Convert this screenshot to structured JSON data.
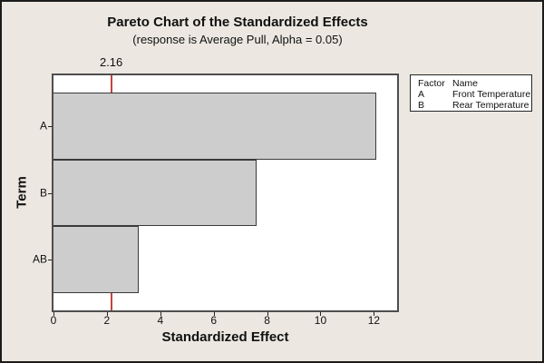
{
  "chart_data": {
    "type": "bar",
    "orientation": "horizontal",
    "title": "Pareto Chart of the Standardized Effects",
    "subtitle": "(response is Average Pull, Alpha = 0.05)",
    "categories": [
      "A",
      "B",
      "AB"
    ],
    "values": [
      12.1,
      7.6,
      3.2
    ],
    "xlabel": "Standardized Effect",
    "ylabel": "Term",
    "xlim": [
      0,
      12.87
    ],
    "x_ticks": [
      0,
      2,
      4,
      6,
      8,
      10,
      12
    ],
    "reference_line": 2.16,
    "reference_label": "2.16",
    "grid": false,
    "legend_position": "top-right"
  },
  "legend": {
    "headers": {
      "factor": "Factor",
      "name": "Name"
    },
    "rows": [
      {
        "factor": "A",
        "name": "Front Temperature"
      },
      {
        "factor": "B",
        "name": "Rear Temperature"
      }
    ]
  },
  "colors": {
    "background": "#ece8e1",
    "plot_background": "#ffffff",
    "bar_fill": "#cdcdcd",
    "bar_border": "#3a3a3a",
    "plot_border": "#4e4e4e",
    "reference_line": "#c0453e",
    "text": "#111111"
  }
}
